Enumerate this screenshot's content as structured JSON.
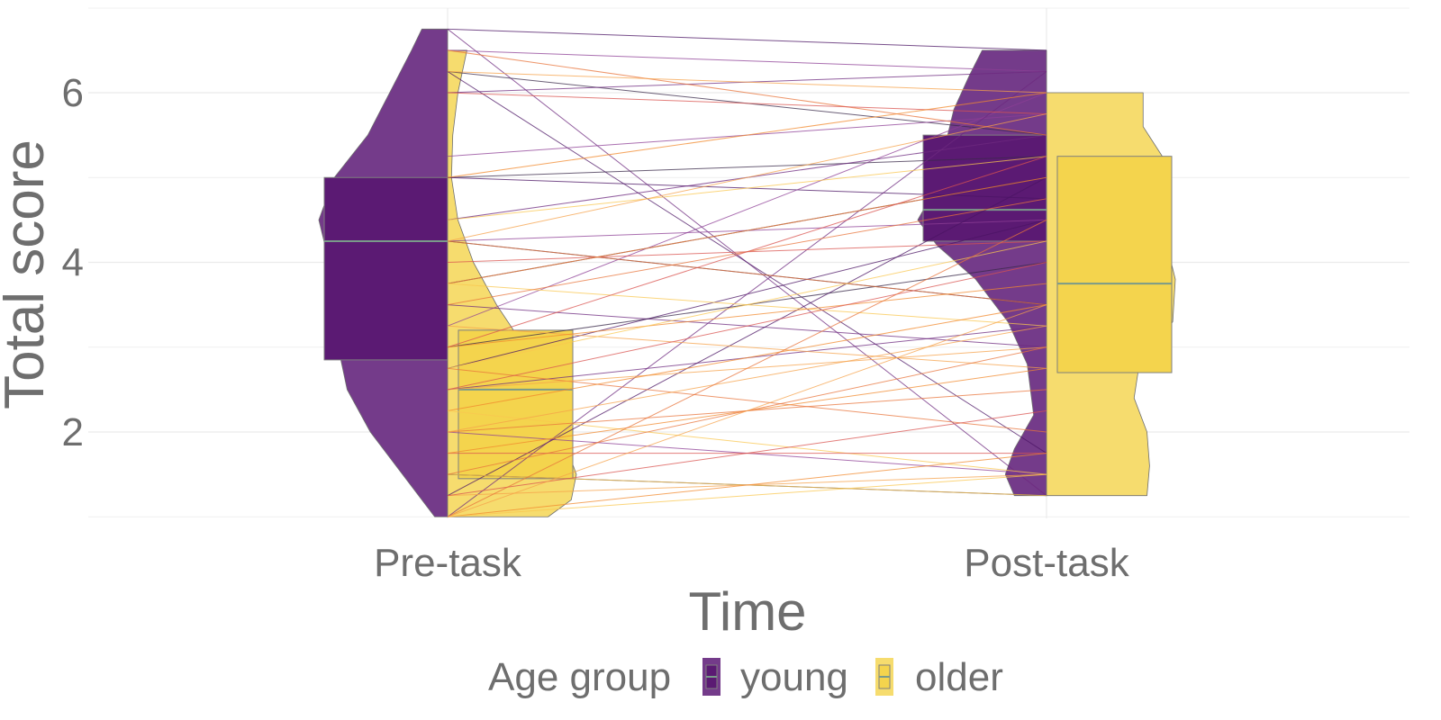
{
  "chart_data": {
    "type": "violin-box-paired",
    "xlabel": "Time",
    "ylabel": "Total score",
    "categories": [
      "Pre-task",
      "Post-task"
    ],
    "ylim": [
      1,
      6.75
    ],
    "yticks": [
      2,
      4,
      6
    ],
    "grid": true,
    "legend": {
      "title": "Age group",
      "position": "bottom",
      "entries": [
        "young",
        "older"
      ]
    },
    "colors": {
      "young": "#5b1a73",
      "young_violin": "#743b8a",
      "older": "#f4d44d",
      "older_violin": "#f6dc6e",
      "median_line": "#7a9a8a",
      "box_border": "#7f7f7f"
    },
    "boxes": [
      {
        "time": "Pre-task",
        "group": "young",
        "q1": 2.85,
        "median": 4.25,
        "q3": 5.0
      },
      {
        "time": "Pre-task",
        "group": "older",
        "q1": 1.45,
        "median": 2.5,
        "q3": 3.2
      },
      {
        "time": "Post-task",
        "group": "young",
        "q1": 4.25,
        "median": 4.62,
        "q3": 5.5
      },
      {
        "time": "Post-task",
        "group": "older",
        "q1": 2.7,
        "median": 3.75,
        "q3": 5.25
      }
    ],
    "violins": [
      {
        "time": "Pre-task",
        "group": "young",
        "side": "left",
        "min": 1.0,
        "max": 6.75,
        "profile": [
          [
            1.0,
            0.1
          ],
          [
            1.5,
            0.35
          ],
          [
            2.0,
            0.6
          ],
          [
            2.5,
            0.78
          ],
          [
            3.0,
            0.85
          ],
          [
            3.5,
            0.82
          ],
          [
            4.0,
            0.92
          ],
          [
            4.5,
            1.0
          ],
          [
            5.0,
            0.88
          ],
          [
            5.5,
            0.62
          ],
          [
            6.0,
            0.45
          ],
          [
            6.5,
            0.28
          ],
          [
            6.75,
            0.2
          ]
        ]
      },
      {
        "time": "Pre-task",
        "group": "older",
        "side": "right",
        "min": 1.0,
        "max": 6.5,
        "profile": [
          [
            1.0,
            0.78
          ],
          [
            1.2,
            0.96
          ],
          [
            1.5,
            1.0
          ],
          [
            2.0,
            0.88
          ],
          [
            2.5,
            0.8
          ],
          [
            3.0,
            0.6
          ],
          [
            3.5,
            0.38
          ],
          [
            4.0,
            0.2
          ],
          [
            4.5,
            0.08
          ],
          [
            5.0,
            0.03
          ],
          [
            5.5,
            0.04
          ],
          [
            6.0,
            0.08
          ],
          [
            6.5,
            0.15
          ]
        ]
      },
      {
        "time": "Post-task",
        "group": "young",
        "side": "left",
        "min": 1.25,
        "max": 6.5,
        "profile": [
          [
            1.25,
            0.25
          ],
          [
            1.5,
            0.32
          ],
          [
            1.8,
            0.25
          ],
          [
            2.2,
            0.1
          ],
          [
            2.8,
            0.15
          ],
          [
            3.3,
            0.3
          ],
          [
            3.8,
            0.55
          ],
          [
            4.2,
            0.85
          ],
          [
            4.5,
            1.0
          ],
          [
            4.9,
            0.85
          ],
          [
            5.3,
            0.8
          ],
          [
            5.8,
            0.72
          ],
          [
            6.2,
            0.6
          ],
          [
            6.5,
            0.5
          ]
        ]
      },
      {
        "time": "Post-task",
        "group": "older",
        "side": "right",
        "min": 1.25,
        "max": 6.0,
        "profile": [
          [
            1.25,
            0.78
          ],
          [
            1.6,
            0.8
          ],
          [
            2.0,
            0.78
          ],
          [
            2.4,
            0.68
          ],
          [
            2.8,
            0.72
          ],
          [
            3.3,
            0.98
          ],
          [
            3.8,
            1.0
          ],
          [
            4.3,
            0.92
          ],
          [
            4.7,
            0.9
          ],
          [
            5.2,
            0.92
          ],
          [
            5.6,
            0.75
          ],
          [
            6.0,
            0.75
          ]
        ]
      }
    ],
    "paired_lines": [
      {
        "group": "young",
        "pre": 6.75,
        "post": 6.5
      },
      {
        "group": "young",
        "pre": 6.75,
        "post": 1.25
      },
      {
        "group": "young",
        "pre": 6.5,
        "post": 6.25
      },
      {
        "group": "young",
        "pre": 6.25,
        "post": 5.5
      },
      {
        "group": "young",
        "pre": 6.25,
        "post": 1.75
      },
      {
        "group": "young",
        "pre": 6.0,
        "post": 6.25
      },
      {
        "group": "young",
        "pre": 5.25,
        "post": 5.75
      },
      {
        "group": "young",
        "pre": 5.0,
        "post": 5.25
      },
      {
        "group": "young",
        "pre": 5.0,
        "post": 4.75
      },
      {
        "group": "young",
        "pre": 4.5,
        "post": 5.5
      },
      {
        "group": "young",
        "pre": 4.25,
        "post": 4.5
      },
      {
        "group": "young",
        "pre": 4.25,
        "post": 3.5
      },
      {
        "group": "young",
        "pre": 3.75,
        "post": 5.0
      },
      {
        "group": "young",
        "pre": 3.5,
        "post": 3.0
      },
      {
        "group": "young",
        "pre": 3.25,
        "post": 6.0
      },
      {
        "group": "young",
        "pre": 3.0,
        "post": 4.0
      },
      {
        "group": "young",
        "pre": 2.75,
        "post": 4.5
      },
      {
        "group": "young",
        "pre": 2.5,
        "post": 3.25
      },
      {
        "group": "young",
        "pre": 2.0,
        "post": 1.5
      },
      {
        "group": "young",
        "pre": 1.5,
        "post": 1.25
      },
      {
        "group": "young",
        "pre": 1.25,
        "post": 5.0
      },
      {
        "group": "young",
        "pre": 1.0,
        "post": 6.25
      },
      {
        "group": "older",
        "pre": 6.5,
        "post": 5.5
      },
      {
        "group": "older",
        "pre": 6.25,
        "post": 6.0
      },
      {
        "group": "older",
        "pre": 6.0,
        "post": 5.75
      },
      {
        "group": "older",
        "pre": 5.0,
        "post": 6.0
      },
      {
        "group": "older",
        "pre": 4.5,
        "post": 5.25
      },
      {
        "group": "older",
        "pre": 4.25,
        "post": 3.5
      },
      {
        "group": "older",
        "pre": 4.25,
        "post": 5.75
      },
      {
        "group": "older",
        "pre": 4.0,
        "post": 4.25
      },
      {
        "group": "older",
        "pre": 3.75,
        "post": 5.0
      },
      {
        "group": "older",
        "pre": 3.75,
        "post": 3.25
      },
      {
        "group": "older",
        "pre": 3.5,
        "post": 4.75
      },
      {
        "group": "older",
        "pre": 3.25,
        "post": 2.75
      },
      {
        "group": "older",
        "pre": 3.0,
        "post": 5.25
      },
      {
        "group": "older",
        "pre": 3.0,
        "post": 3.75
      },
      {
        "group": "older",
        "pre": 2.75,
        "post": 4.25
      },
      {
        "group": "older",
        "pre": 2.75,
        "post": 2.0
      },
      {
        "group": "older",
        "pre": 2.5,
        "post": 3.0
      },
      {
        "group": "older",
        "pre": 2.5,
        "post": 4.0
      },
      {
        "group": "older",
        "pre": 2.25,
        "post": 3.5
      },
      {
        "group": "older",
        "pre": 2.25,
        "post": 1.5
      },
      {
        "group": "older",
        "pre": 2.0,
        "post": 2.5
      },
      {
        "group": "older",
        "pre": 2.0,
        "post": 3.25
      },
      {
        "group": "older",
        "pre": 1.75,
        "post": 1.75
      },
      {
        "group": "older",
        "pre": 1.75,
        "post": 2.75
      },
      {
        "group": "older",
        "pre": 1.5,
        "post": 1.25
      },
      {
        "group": "older",
        "pre": 1.5,
        "post": 3.0
      },
      {
        "group": "older",
        "pre": 1.25,
        "post": 1.5
      },
      {
        "group": "older",
        "pre": 1.25,
        "post": 2.25
      },
      {
        "group": "older",
        "pre": 1.0,
        "post": 1.75
      },
      {
        "group": "older",
        "pre": 1.0,
        "post": 1.5
      },
      {
        "group": "older",
        "pre": 1.0,
        "post": 4.5
      },
      {
        "group": "older",
        "pre": 1.0,
        "post": 3.5
      }
    ]
  }
}
